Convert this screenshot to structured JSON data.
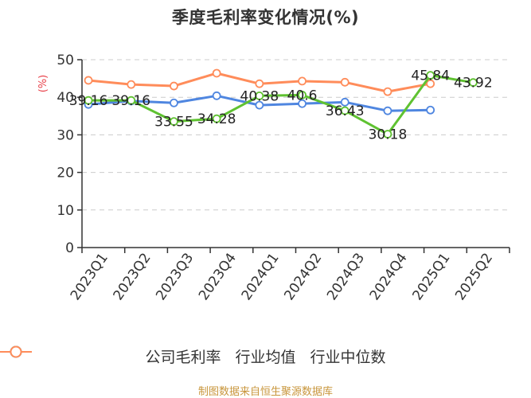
{
  "title": "季度毛利率变化情况(%)",
  "source_note": "制图数据来自恒生聚源数据库",
  "legend": [
    {
      "label": "公司毛利率",
      "color": "#5fc231"
    },
    {
      "label": "行业均值",
      "color": "#4f86e0"
    },
    {
      "label": "行业中位数",
      "color": "#ff8c5a"
    }
  ],
  "chart_data": {
    "type": "line",
    "title": "季度毛利率变化情况(%)",
    "xlabel": "",
    "ylabel": "(%)",
    "ylim": [
      0,
      50
    ],
    "yticks": [
      0,
      10,
      20,
      30,
      40,
      50
    ],
    "grid": true,
    "legend_position": "bottom",
    "categories": [
      "2023Q1",
      "2023Q2",
      "2023Q3",
      "2023Q4",
      "2024Q1",
      "2024Q2",
      "2024Q3",
      "2024Q4",
      "2025Q1",
      "2025Q2"
    ],
    "series": [
      {
        "name": "公司毛利率",
        "color": "#5fc231",
        "labeled": true,
        "values": [
          39.16,
          39.16,
          33.55,
          34.28,
          40.38,
          40.6,
          36.43,
          30.18,
          45.84,
          43.92
        ]
      },
      {
        "name": "行业均值",
        "color": "#4f86e0",
        "labeled": false,
        "values": [
          38.1,
          39.0,
          38.5,
          40.4,
          37.9,
          38.3,
          38.7,
          36.4,
          36.6,
          null
        ]
      },
      {
        "name": "行业中位数",
        "color": "#ff8c5a",
        "labeled": false,
        "values": [
          44.5,
          43.4,
          43.0,
          46.4,
          43.6,
          44.3,
          44.0,
          41.5,
          43.6,
          null
        ]
      }
    ]
  }
}
